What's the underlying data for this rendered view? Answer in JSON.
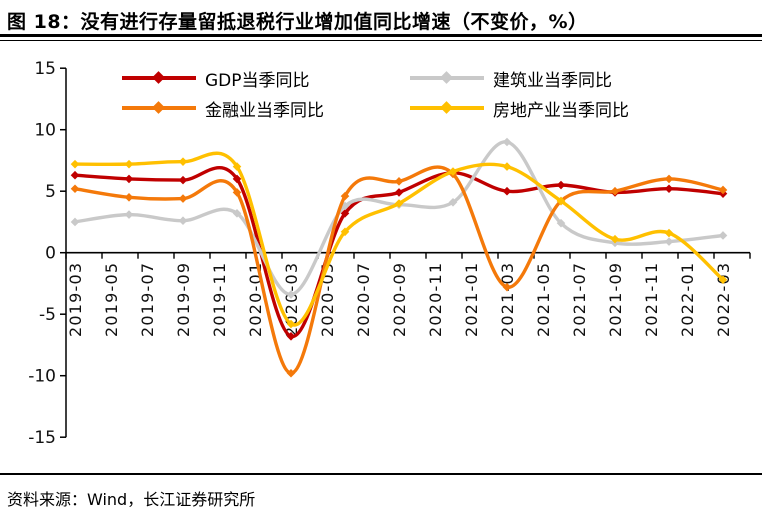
{
  "title": "图 18：没有进行存量留抵退税行业增加值同比增速（不变价，%）",
  "footer": {
    "source_label": "资料来源：Wind，长江证券研究所"
  },
  "chart_data": {
    "type": "line",
    "title": "没有进行存量留抵退税行业增加值同比增速（不变价，%）",
    "unit": "%",
    "smooth": true,
    "grid": false,
    "legend_position": "top",
    "ylim": [
      -15,
      15
    ],
    "y_ticks": [
      15,
      10,
      5,
      0,
      -5,
      -10,
      -15
    ],
    "x_tick_labels": [
      "2019-03",
      "2019-05",
      "2019-07",
      "2019-09",
      "2019-11",
      "2020-01",
      "2020-03",
      "2020-05",
      "2020-07",
      "2020-09",
      "2020-11",
      "2021-01",
      "2021-03",
      "2021-05",
      "2021-07",
      "2021-09",
      "2021-11",
      "2022-01",
      "2022-03"
    ],
    "x": [
      "2019-03",
      "2019-06",
      "2019-09",
      "2019-12",
      "2020-03",
      "2020-06",
      "2020-09",
      "2020-12",
      "2021-03",
      "2021-06",
      "2021-09",
      "2021-12",
      "2022-03"
    ],
    "series": [
      {
        "key": "gdp",
        "name": "GDP当季同比",
        "color": "#C00000",
        "values": [
          6.3,
          6.0,
          5.9,
          6.0,
          -6.8,
          3.2,
          4.9,
          6.5,
          5.0,
          5.5,
          4.9,
          5.2,
          4.8
        ]
      },
      {
        "key": "construction",
        "name": "建筑业当季同比",
        "color": "#C9C9C9",
        "values": [
          2.5,
          3.1,
          2.6,
          3.2,
          -3.4,
          3.8,
          3.9,
          4.1,
          9.0,
          2.4,
          0.8,
          0.9,
          1.4
        ]
      },
      {
        "key": "finance",
        "name": "金融业当季同比",
        "color": "#F4790A",
        "values": [
          5.2,
          4.5,
          4.4,
          4.9,
          -9.8,
          4.6,
          5.8,
          6.4,
          -2.8,
          4.2,
          5.0,
          6.0,
          5.1
        ]
      },
      {
        "key": "real-estate",
        "name": "房地产业当季同比",
        "color": "#FFC000",
        "values": [
          7.2,
          7.2,
          7.4,
          7.0,
          -5.8,
          1.7,
          4.0,
          6.6,
          7.0,
          4.2,
          1.1,
          1.6,
          -2.2
        ]
      }
    ]
  }
}
